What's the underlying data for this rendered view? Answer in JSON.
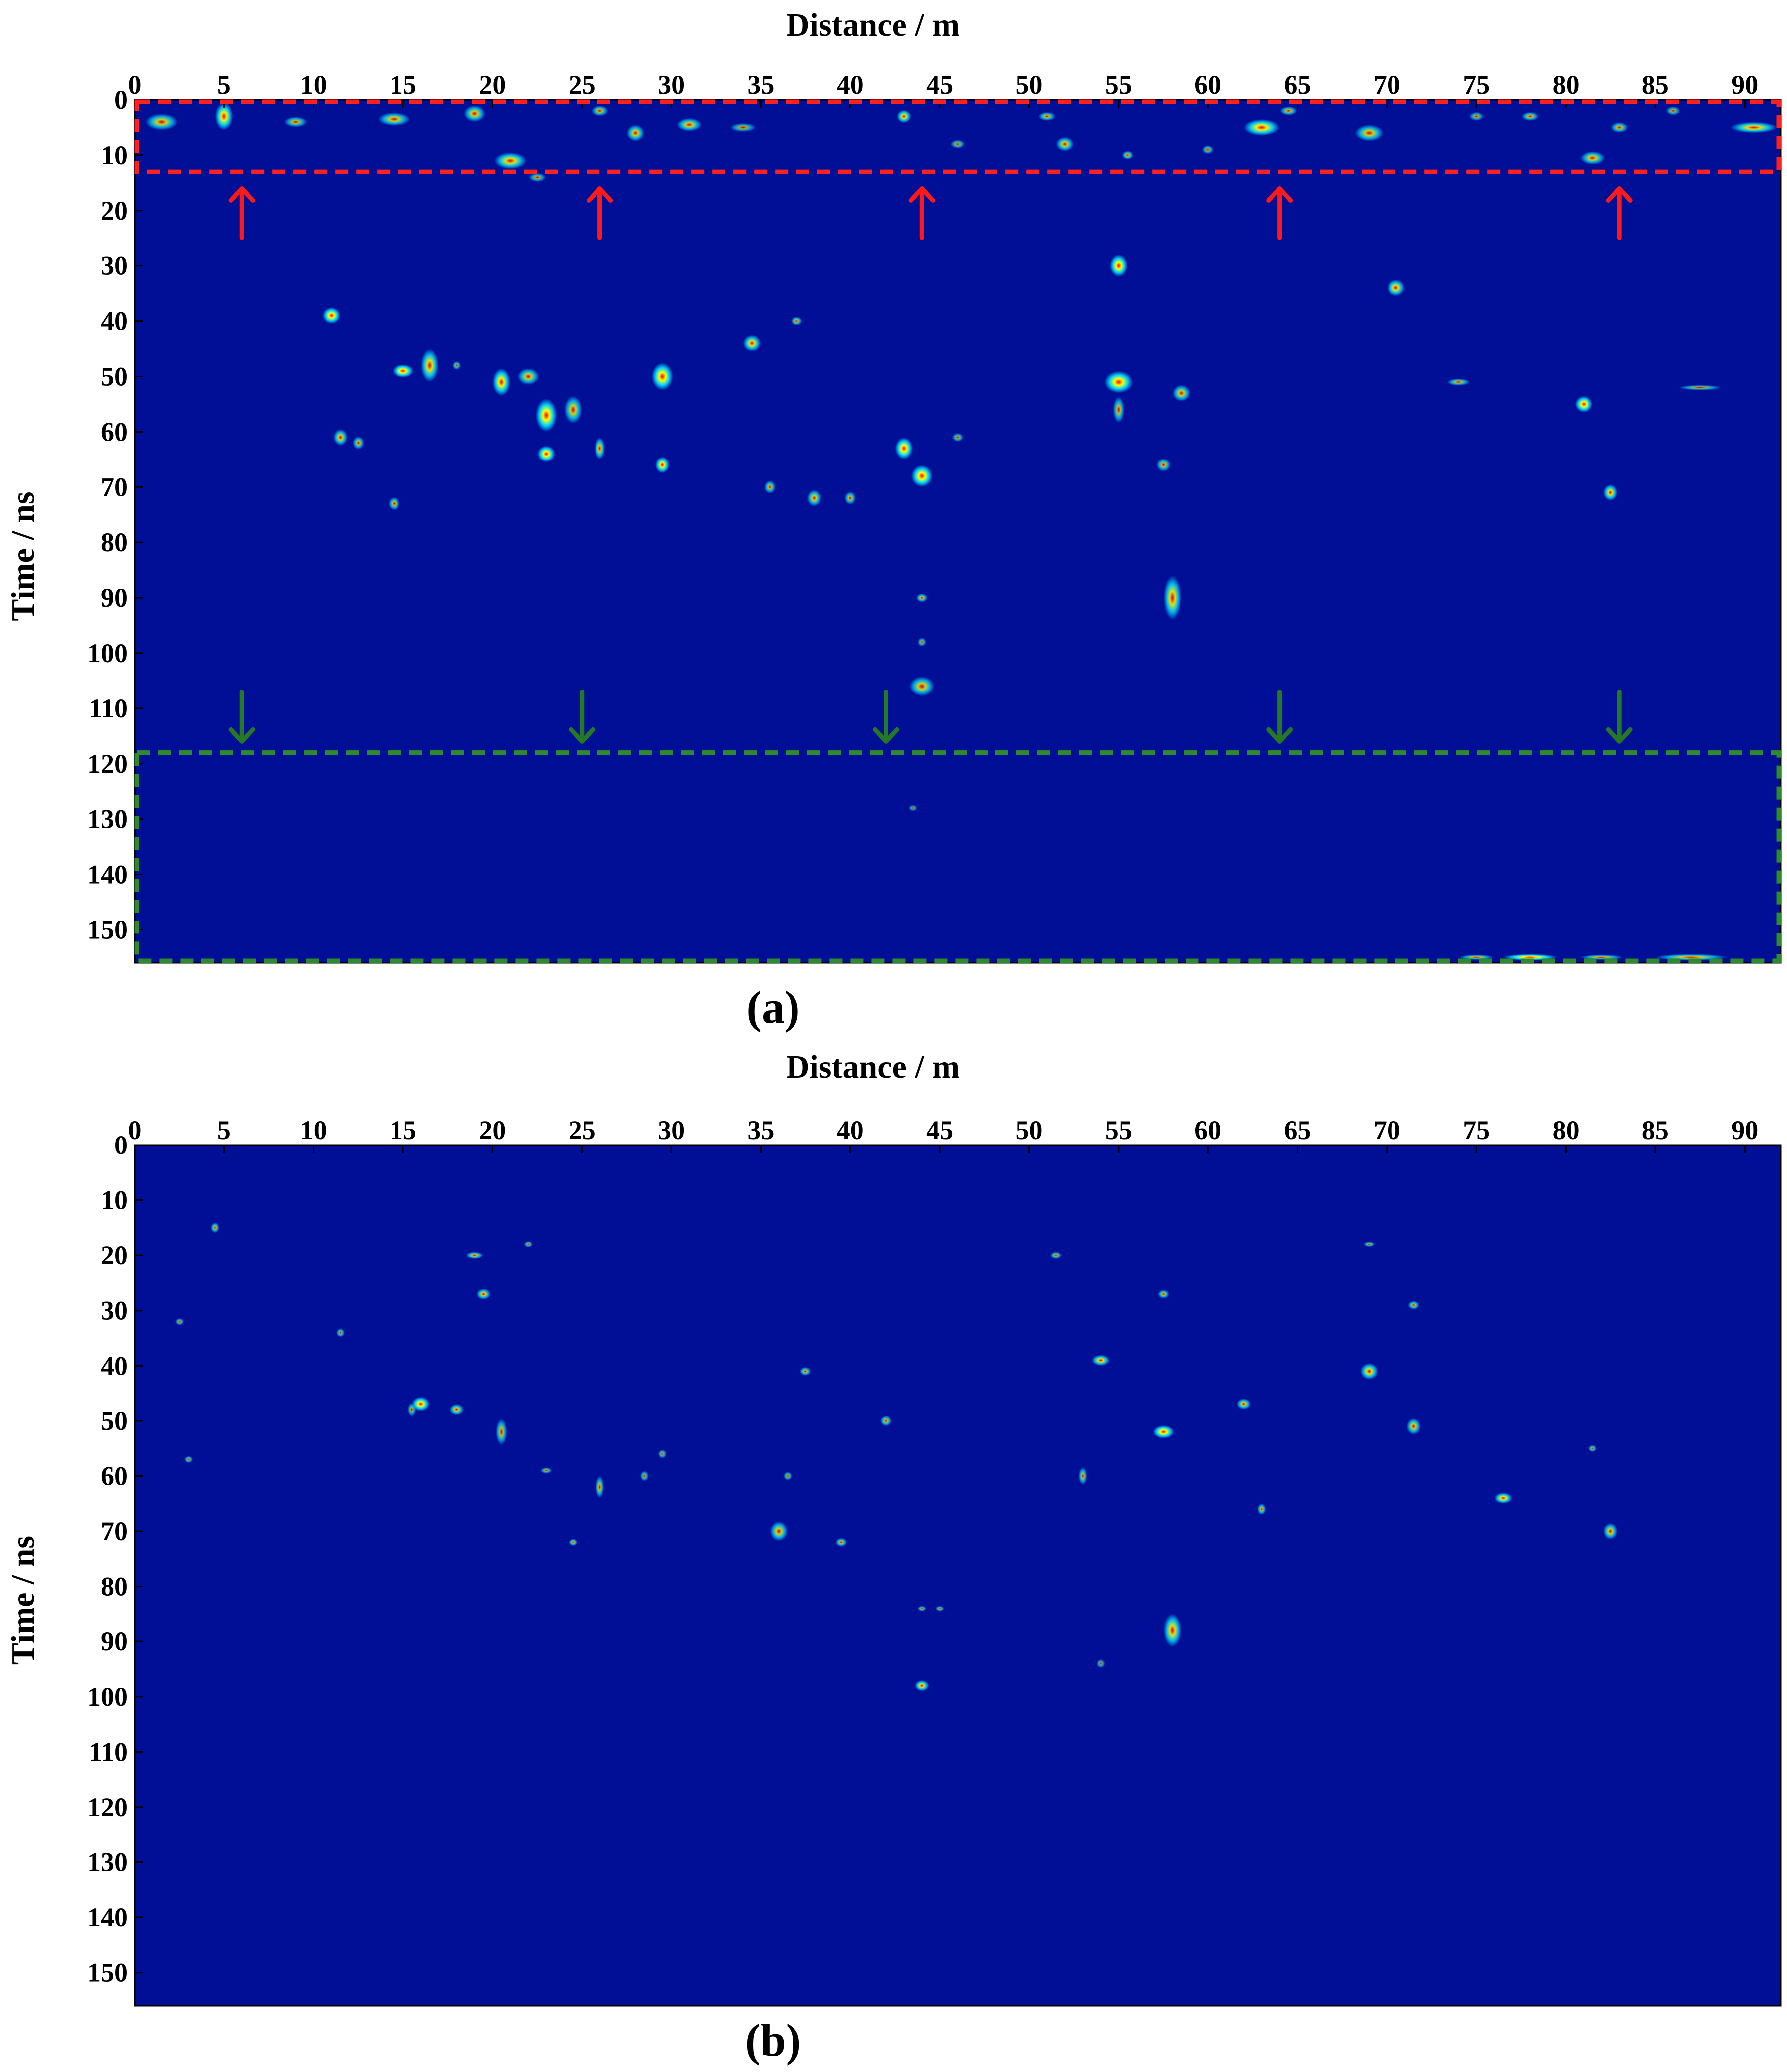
{
  "colors": {
    "background": "#000f96",
    "red_box": "#ff2020",
    "green_box": "#2d8a2d",
    "red_arrow": "#ff1a1a",
    "green_arrow": "#237a23",
    "hot_low": "#00d8ff",
    "hot_mid": "#ffff00",
    "hot_high": "#ff0000"
  },
  "chart_data": [
    {
      "type": "heatmap",
      "panel_label": "(a)",
      "xlabel": "Distance / m",
      "ylabel": "Time / ns",
      "xlim": [
        0,
        92
      ],
      "ylim": [
        156,
        0
      ],
      "x_ticks": [
        "0",
        "5",
        "10",
        "15",
        "20",
        "25",
        "30",
        "35",
        "40",
        "45",
        "50",
        "55",
        "60",
        "65",
        "70",
        "75",
        "80",
        "85",
        "90"
      ],
      "y_ticks": [
        "0",
        "10",
        "20",
        "30",
        "40",
        "50",
        "60",
        "70",
        "80",
        "90",
        "100",
        "110",
        "120",
        "130",
        "140",
        "150"
      ],
      "grid": false,
      "annotations": [
        {
          "kind": "dashed-box",
          "color": "red",
          "x": [
            0,
            92
          ],
          "y": [
            0,
            13
          ]
        },
        {
          "kind": "dashed-box",
          "color": "green",
          "x": [
            0,
            92
          ],
          "y": [
            118,
            156
          ]
        },
        {
          "kind": "arrows-up",
          "color": "red",
          "x": [
            6,
            26,
            44,
            64,
            83
          ],
          "y_tail": 25,
          "y_head": 16
        },
        {
          "kind": "arrows-down",
          "color": "green",
          "x": [
            6,
            25,
            42,
            64,
            83
          ],
          "y_tail": 107,
          "y_head": 116
        }
      ],
      "hotspots": [
        [
          1.5,
          4,
          0.9,
          1.5,
          0.6
        ],
        [
          5,
          3,
          0.5,
          2.5,
          0.8
        ],
        [
          9,
          4,
          0.8,
          1.2,
          0.5
        ],
        [
          14.5,
          3.5,
          0.9,
          1.2,
          0.6
        ],
        [
          19,
          2.5,
          0.6,
          1.5,
          0.6
        ],
        [
          21,
          11,
          0.9,
          1.5,
          0.7
        ],
        [
          26,
          2,
          0.6,
          1.2,
          0.5
        ],
        [
          28,
          6,
          0.5,
          1.5,
          0.6
        ],
        [
          31,
          4.5,
          0.7,
          1.2,
          0.6
        ],
        [
          34,
          5,
          0.9,
          1,
          0.4
        ],
        [
          43,
          3,
          0.4,
          1.2,
          0.7
        ],
        [
          46,
          8,
          0.5,
          1,
          0.4
        ],
        [
          51,
          3,
          0.6,
          1,
          0.5
        ],
        [
          52,
          8,
          0.5,
          1.3,
          0.6
        ],
        [
          55.5,
          10,
          0.4,
          1,
          0.5
        ],
        [
          60,
          9,
          0.4,
          1,
          0.4
        ],
        [
          63,
          5,
          1.0,
          1.5,
          0.8
        ],
        [
          64.5,
          2,
          0.6,
          1,
          0.5
        ],
        [
          69,
          6,
          0.8,
          1.5,
          0.6
        ],
        [
          75,
          3,
          0.5,
          1,
          0.4
        ],
        [
          78,
          3,
          0.6,
          1,
          0.5
        ],
        [
          81.5,
          10.5,
          0.7,
          1.2,
          0.6
        ],
        [
          83,
          5,
          0.6,
          1.2,
          0.5
        ],
        [
          86,
          2,
          0.5,
          1,
          0.4
        ],
        [
          90.5,
          5,
          1.3,
          1,
          0.7
        ],
        [
          11,
          39,
          0.5,
          1.5,
          0.9
        ],
        [
          15,
          49,
          0.6,
          1.2,
          0.9
        ],
        [
          16.5,
          48,
          0.5,
          3,
          0.7
        ],
        [
          18,
          48,
          0.3,
          1,
          0.4
        ],
        [
          20.5,
          51,
          0.5,
          2.5,
          0.8
        ],
        [
          22,
          50,
          0.6,
          1.5,
          0.6
        ],
        [
          23,
          57,
          0.6,
          3,
          0.9
        ],
        [
          23,
          64,
          0.5,
          1.5,
          0.9
        ],
        [
          24.5,
          56,
          0.5,
          2.5,
          0.6
        ],
        [
          29.5,
          50,
          0.6,
          2.5,
          0.95
        ],
        [
          29.5,
          66,
          0.4,
          1.5,
          0.8
        ],
        [
          34.5,
          44,
          0.5,
          1.5,
          0.7
        ],
        [
          37,
          40,
          0.4,
          1,
          0.5
        ],
        [
          43,
          63,
          0.5,
          2,
          0.9
        ],
        [
          44,
          68,
          0.6,
          2,
          0.95
        ],
        [
          44,
          106,
          0.7,
          1.8,
          0.6
        ],
        [
          55,
          30,
          0.5,
          2,
          0.9
        ],
        [
          55,
          51,
          0.8,
          2,
          0.9
        ],
        [
          55,
          56,
          0.4,
          3,
          0.5
        ],
        [
          57.5,
          66,
          0.5,
          1.5,
          0.5
        ],
        [
          58.5,
          53,
          0.5,
          1.5,
          0.6
        ],
        [
          58,
          90,
          0.5,
          4,
          0.7
        ],
        [
          70.5,
          34,
          0.5,
          1.5,
          0.7
        ],
        [
          74,
          51,
          0.8,
          0.8,
          0.5
        ],
        [
          81,
          55,
          0.5,
          1.5,
          0.9
        ],
        [
          82.5,
          71,
          0.4,
          1.5,
          0.7
        ],
        [
          87.5,
          52,
          1.5,
          0.6,
          0.4
        ],
        [
          11.5,
          61,
          0.4,
          1.5,
          0.6
        ],
        [
          12.5,
          62,
          0.4,
          1.5,
          0.5
        ],
        [
          14.5,
          73,
          0.4,
          1.5,
          0.5
        ],
        [
          26,
          63,
          0.3,
          2,
          0.6
        ],
        [
          35.5,
          70,
          0.4,
          1.5,
          0.5
        ],
        [
          38,
          72,
          0.4,
          1.5,
          0.6
        ],
        [
          40,
          72,
          0.4,
          1.5,
          0.5
        ],
        [
          44,
          90,
          0.4,
          1,
          0.5
        ],
        [
          44,
          98,
          0.3,
          1,
          0.4
        ],
        [
          22.5,
          14,
          0.6,
          1,
          0.4
        ],
        [
          46,
          61,
          0.4,
          1,
          0.4
        ],
        [
          43.5,
          128,
          0.3,
          0.7,
          0.3
        ],
        [
          75,
          155,
          1.2,
          0.6,
          0.5
        ],
        [
          78,
          155,
          1.5,
          0.6,
          0.9
        ],
        [
          82,
          155,
          1.5,
          0.6,
          0.5
        ],
        [
          87,
          155,
          2,
          0.6,
          0.6
        ]
      ]
    },
    {
      "type": "heatmap",
      "panel_label": "(b)",
      "xlabel": "Distance / m",
      "ylabel": "Time / ns",
      "xlim": [
        0,
        92
      ],
      "ylim": [
        156,
        0
      ],
      "x_ticks": [
        "0",
        "5",
        "10",
        "15",
        "20",
        "25",
        "30",
        "35",
        "40",
        "45",
        "50",
        "55",
        "60",
        "65",
        "70",
        "75",
        "80",
        "85",
        "90"
      ],
      "y_ticks": [
        "0",
        "10",
        "20",
        "30",
        "40",
        "50",
        "60",
        "70",
        "80",
        "90",
        "100",
        "110",
        "120",
        "130",
        "140",
        "150"
      ],
      "grid": false,
      "hotspots": [
        [
          4.5,
          15,
          0.3,
          1.2,
          0.5
        ],
        [
          2.5,
          32,
          0.3,
          0.8,
          0.4
        ],
        [
          3,
          57,
          0.3,
          0.8,
          0.4
        ],
        [
          11.5,
          34,
          0.3,
          1,
          0.4
        ],
        [
          16,
          47,
          0.5,
          1.3,
          0.85
        ],
        [
          18,
          48,
          0.4,
          1,
          0.6
        ],
        [
          19,
          20,
          0.6,
          0.8,
          0.55
        ],
        [
          19.5,
          27,
          0.4,
          1,
          0.6
        ],
        [
          20.5,
          52,
          0.4,
          3,
          0.5
        ],
        [
          23,
          59,
          0.4,
          0.7,
          0.4
        ],
        [
          24.5,
          72,
          0.3,
          0.8,
          0.5
        ],
        [
          26,
          62,
          0.3,
          2.5,
          0.5
        ],
        [
          28.5,
          60,
          0.3,
          1.2,
          0.4
        ],
        [
          29.5,
          56,
          0.3,
          1,
          0.4
        ],
        [
          36,
          70,
          0.5,
          1.8,
          0.6
        ],
        [
          37.5,
          41,
          0.4,
          1,
          0.5
        ],
        [
          39.5,
          72,
          0.4,
          1,
          0.5
        ],
        [
          42,
          50,
          0.4,
          1.2,
          0.5
        ],
        [
          44,
          98,
          0.4,
          1,
          0.7
        ],
        [
          44,
          84,
          0.3,
          0.6,
          0.4
        ],
        [
          45,
          84,
          0.3,
          0.6,
          0.4
        ],
        [
          51.5,
          20,
          0.4,
          0.8,
          0.45
        ],
        [
          53,
          60,
          0.3,
          2,
          0.5
        ],
        [
          54,
          39,
          0.5,
          1,
          0.7
        ],
        [
          57.5,
          52,
          0.6,
          1.2,
          0.95
        ],
        [
          57.5,
          27,
          0.4,
          1,
          0.5
        ],
        [
          58,
          88,
          0.5,
          3,
          0.7
        ],
        [
          62,
          47,
          0.4,
          1,
          0.6
        ],
        [
          63,
          66,
          0.3,
          1.3,
          0.5
        ],
        [
          69,
          41,
          0.5,
          1.5,
          0.7
        ],
        [
          71.5,
          51,
          0.4,
          1.5,
          0.6
        ],
        [
          71.5,
          29,
          0.4,
          1,
          0.5
        ],
        [
          76.5,
          64,
          0.5,
          1,
          0.75
        ],
        [
          82.5,
          70,
          0.4,
          1.5,
          0.6
        ],
        [
          81.5,
          55,
          0.3,
          0.8,
          0.4
        ],
        [
          69,
          18,
          0.4,
          0.6,
          0.4
        ],
        [
          15.5,
          48,
          0.3,
          1.5,
          0.4
        ],
        [
          36.5,
          60,
          0.3,
          1,
          0.4
        ],
        [
          22,
          18,
          0.3,
          0.7,
          0.4
        ],
        [
          54,
          94,
          0.3,
          1,
          0.3
        ]
      ]
    }
  ]
}
